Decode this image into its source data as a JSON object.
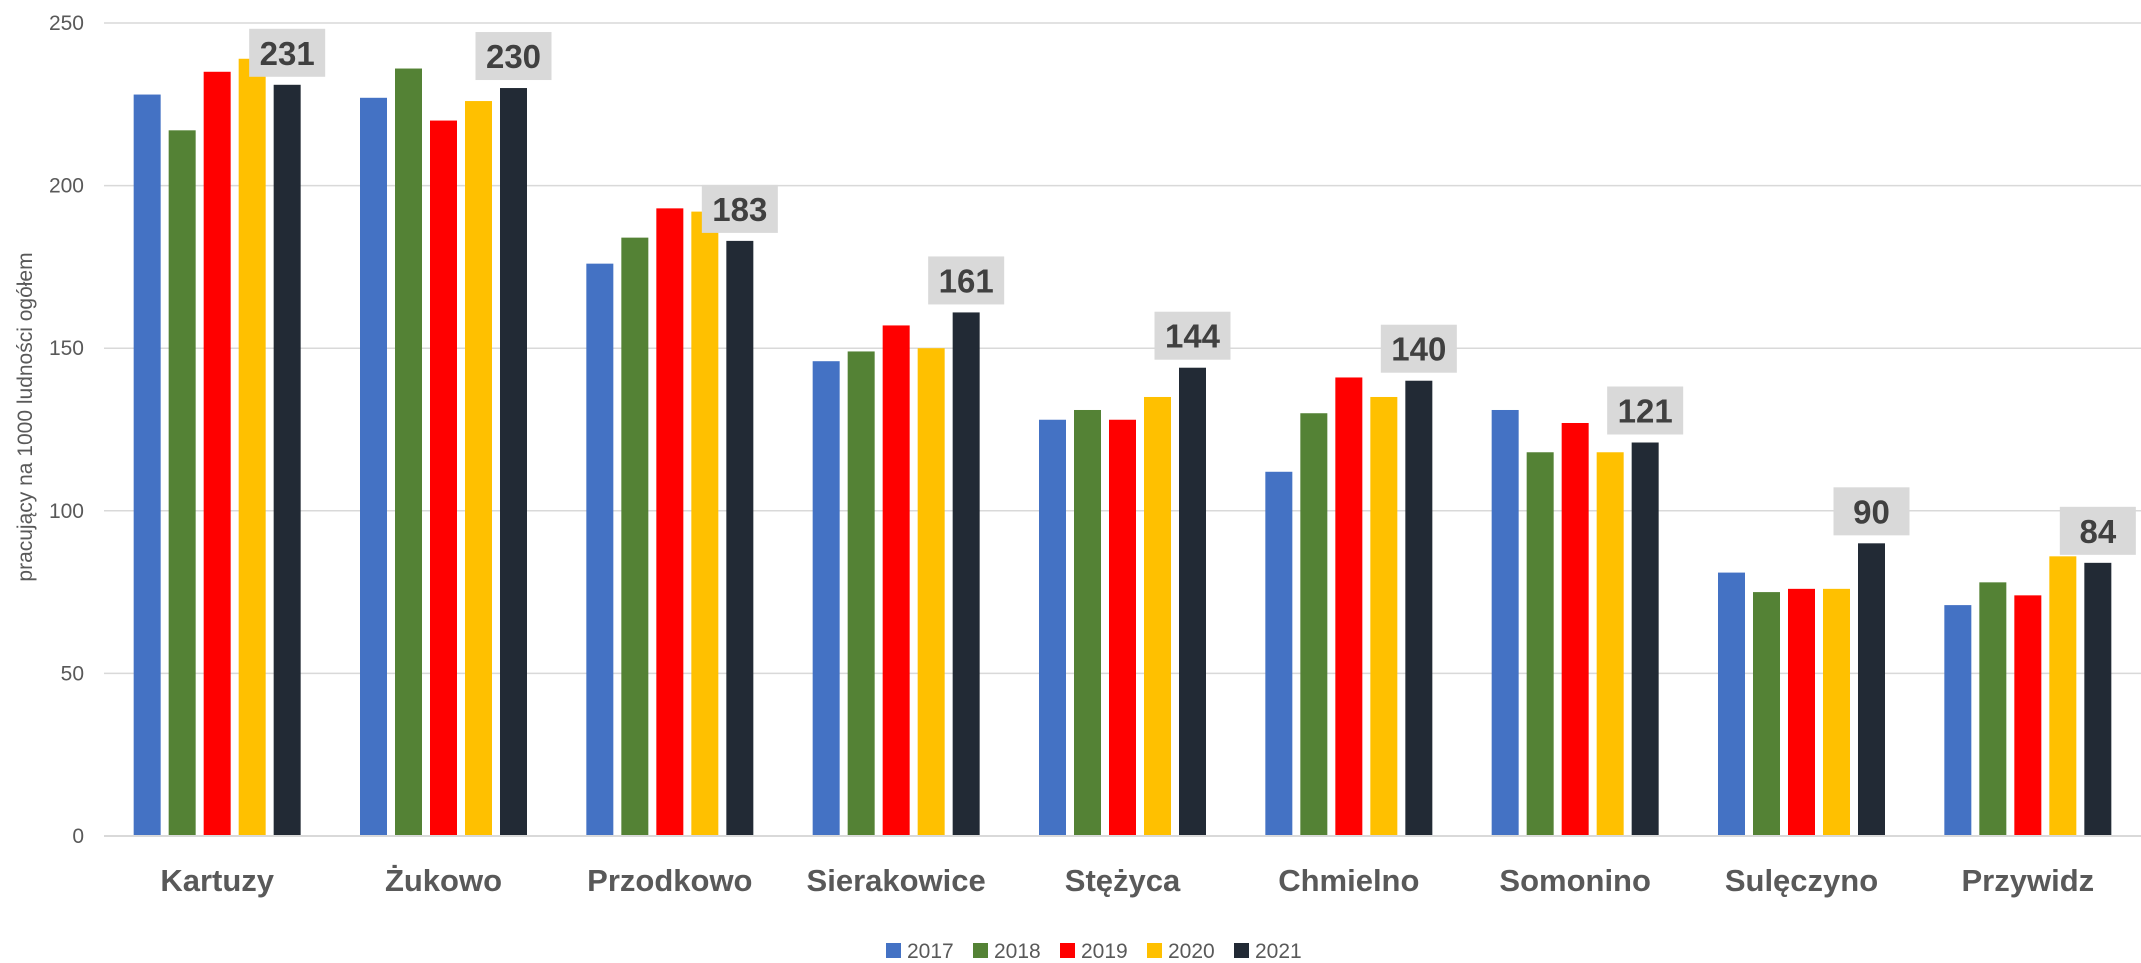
{
  "chart_data": {
    "type": "bar",
    "ylabel": "pracujący na 1000 ludności ogółem",
    "ylim": [
      0,
      250
    ],
    "yticks": [
      0,
      50,
      100,
      150,
      200,
      250
    ],
    "grid": true,
    "legend_position": "bottom",
    "categories": [
      "Kartuzy",
      "Żukowo",
      "Przodkowo",
      "Sierakowice",
      "Stężyca",
      "Chmielno",
      "Somonino",
      "Sulęczyno",
      "Przywidz"
    ],
    "series": [
      {
        "name": "2017",
        "color": "#4472C4",
        "values": [
          228,
          227,
          176,
          146,
          128,
          112,
          131,
          81,
          71
        ]
      },
      {
        "name": "2018",
        "color": "#548235",
        "values": [
          217,
          236,
          184,
          149,
          131,
          130,
          118,
          75,
          78
        ]
      },
      {
        "name": "2019",
        "color": "#FF0000",
        "values": [
          235,
          220,
          193,
          157,
          128,
          141,
          127,
          76,
          74
        ]
      },
      {
        "name": "2020",
        "color": "#FFC000",
        "values": [
          239,
          226,
          192,
          150,
          135,
          135,
          118,
          76,
          86
        ]
      },
      {
        "name": "2021",
        "color": "#222A35",
        "values": [
          231,
          230,
          183,
          161,
          144,
          140,
          121,
          90,
          84
        ]
      }
    ],
    "data_labels": {
      "series": "2021",
      "values": [
        "231",
        "230",
        "183",
        "161",
        "144",
        "140",
        "121",
        "90",
        "84"
      ],
      "box_color": "#D9D9D9"
    }
  }
}
